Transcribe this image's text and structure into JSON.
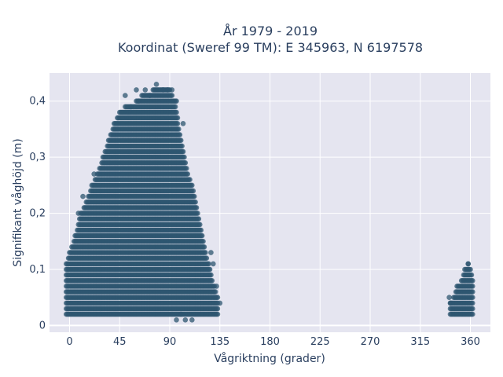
{
  "chart_data": {
    "type": "scatter",
    "title_lines": [
      "År 1979 - 2019",
      "Koordinat (Sweref 99 TM): E 345963, N 6197578"
    ],
    "xlabel": "Vågriktning (grader)",
    "ylabel": "Signifikant våghöjd (m)",
    "xlim": [
      -18,
      378
    ],
    "ylim": [
      -0.012,
      0.45
    ],
    "xticks": [
      0,
      45,
      90,
      135,
      180,
      225,
      270,
      315,
      360
    ],
    "xtick_labels": [
      "0",
      "45",
      "90",
      "135",
      "180",
      "225",
      "270",
      "315",
      "360"
    ],
    "yticks": [
      0,
      0.1,
      0.2,
      0.3,
      0.4
    ],
    "ytick_labels": [
      "0",
      "0,1",
      "0,2",
      "0,3",
      "0,4"
    ],
    "grid": true,
    "marker_color": "#2d5570",
    "plot_bg": "#e5e5f0",
    "series": [
      {
        "envelope": [
          [
            -3,
            0.11
          ],
          [
            0,
            0.13
          ],
          [
            5,
            0.16
          ],
          [
            10,
            0.2
          ],
          [
            15,
            0.22
          ],
          [
            20,
            0.25
          ],
          [
            25,
            0.27
          ],
          [
            30,
            0.3
          ],
          [
            35,
            0.33
          ],
          [
            40,
            0.36
          ],
          [
            45,
            0.38
          ],
          [
            50,
            0.39
          ],
          [
            55,
            0.39
          ],
          [
            60,
            0.4
          ],
          [
            65,
            0.41
          ],
          [
            70,
            0.41
          ],
          [
            75,
            0.42
          ],
          [
            80,
            0.42
          ],
          [
            85,
            0.42
          ],
          [
            90,
            0.42
          ],
          [
            95,
            0.4
          ],
          [
            100,
            0.33
          ],
          [
            105,
            0.28
          ],
          [
            110,
            0.25
          ],
          [
            115,
            0.2
          ],
          [
            120,
            0.15
          ],
          [
            125,
            0.11
          ],
          [
            130,
            0.07
          ],
          [
            133,
            0.05
          ]
        ],
        "points": [
          [
            78,
            0.43
          ],
          [
            68,
            0.42
          ],
          [
            60,
            0.42
          ],
          [
            50,
            0.41
          ],
          [
            72,
            0.41
          ],
          [
            55,
            0.39
          ],
          [
            62,
            0.4
          ],
          [
            84,
            0.42
          ],
          [
            88,
            0.42
          ],
          [
            92,
            0.42
          ],
          [
            96,
            0.4
          ],
          [
            102,
            0.36
          ],
          [
            22,
            0.27
          ],
          [
            12,
            0.23
          ],
          [
            8,
            0.2
          ],
          [
            135,
            0.04
          ],
          [
            132,
            0.07
          ],
          [
            129,
            0.11
          ],
          [
            127,
            0.13
          ],
          [
            96,
            0.01
          ],
          [
            104,
            0.01
          ],
          [
            110,
            0.01
          ],
          [
            100,
            0.02
          ]
        ],
        "ymin": 0.02
      },
      {
        "envelope": [
          [
            342,
            0.04
          ],
          [
            345,
            0.05
          ],
          [
            348,
            0.07
          ],
          [
            352,
            0.08
          ],
          [
            355,
            0.1
          ],
          [
            358,
            0.11
          ],
          [
            360,
            0.1
          ],
          [
            362,
            0.08
          ]
        ],
        "points": [
          [
            358,
            0.11
          ],
          [
            342,
            0.04
          ],
          [
            341,
            0.05
          ]
        ],
        "ymin": 0.02
      }
    ]
  }
}
